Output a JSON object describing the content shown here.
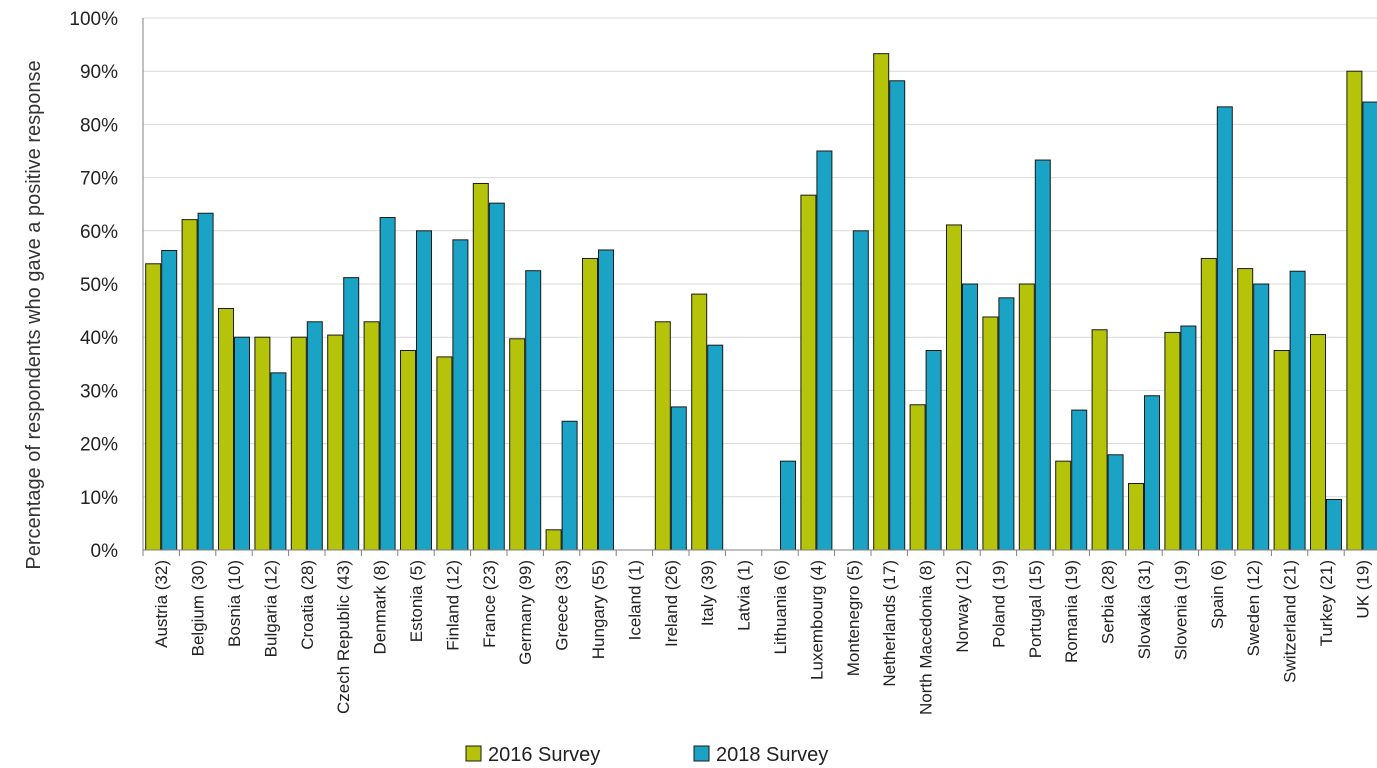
{
  "chart_data": {
    "type": "bar",
    "title": "",
    "xlabel": "",
    "ylabel": "Percentage of respondents who gave a positive response",
    "ylim": [
      0,
      100
    ],
    "yticks": [
      "0%",
      "10%",
      "20%",
      "30%",
      "40%",
      "50%",
      "60%",
      "70%",
      "80%",
      "90%",
      "100%"
    ],
    "grid": true,
    "legend_position": "bottom",
    "categories": [
      "Austria (32)",
      "Belgium (30)",
      "Bosnia (10)",
      "Bulgaria (12)",
      "Croatia (28)",
      "Czech Republic (43)",
      "Denmark (8)",
      "Estonia (5)",
      "Finland (12)",
      "France (23)",
      "Germany (99)",
      "Greece (33)",
      "Hungary (55)",
      "Iceland (1)",
      "Ireland (26)",
      "Italy (39)",
      "Latvia (1)",
      "Lithuania (6)",
      "Luxembourg (4)",
      "Montenegro (5)",
      "Netherlands (17)",
      "North Macedonia (8)",
      "Norway (12)",
      "Poland (19)",
      "Portugal (15)",
      "Romania (19)",
      "Serbia (28)",
      "Slovakia (31)",
      "Slovenia (19)",
      "Spain (6)",
      "Sweden (12)",
      "Switzerland (21)",
      "Turkey (21)",
      "UK (19)"
    ],
    "series": [
      {
        "name": "2016 Survey",
        "color": "#b5c40a",
        "values": [
          53.8,
          62.1,
          45.4,
          40.0,
          40.0,
          40.4,
          42.9,
          37.5,
          36.3,
          68.9,
          39.7,
          3.8,
          54.8,
          0,
          42.9,
          48.1,
          0,
          0,
          66.7,
          0,
          93.3,
          27.3,
          61.1,
          43.8,
          50.0,
          16.7,
          41.4,
          12.5,
          40.9,
          54.8,
          52.9,
          37.5,
          40.5,
          90.0
        ]
      },
      {
        "name": "2018 Survey",
        "color": "#1ba3c6",
        "values": [
          56.3,
          63.3,
          40.0,
          33.3,
          42.9,
          51.2,
          62.5,
          60.0,
          58.3,
          65.2,
          52.5,
          24.2,
          56.4,
          0,
          26.9,
          38.5,
          0,
          16.7,
          75.0,
          60.0,
          88.2,
          37.5,
          50.0,
          47.4,
          73.3,
          26.3,
          17.9,
          29.0,
          42.1,
          83.3,
          50.0,
          52.4,
          9.5,
          84.2
        ]
      }
    ]
  }
}
